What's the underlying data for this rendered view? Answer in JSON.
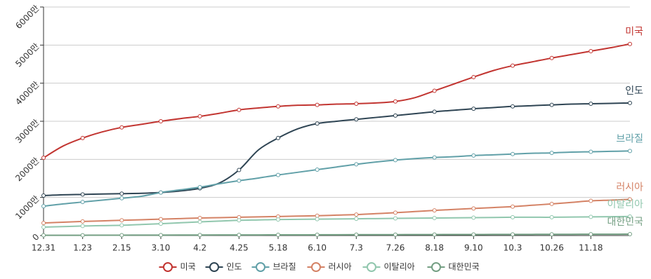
{
  "chart_data": {
    "type": "line",
    "categories": [
      "12.31",
      null,
      "1.23",
      null,
      "2.15",
      null,
      "3.10",
      null,
      "4.2",
      null,
      "4.25",
      null,
      "5.18",
      null,
      "6.10",
      null,
      "7.3",
      null,
      "7.26",
      null,
      "8.18",
      null,
      "9.10",
      null,
      "10.3",
      null,
      "10.26",
      null,
      "11.18",
      null,
      null
    ],
    "ylim": [
      0,
      6000
    ],
    "yticks": [
      0,
      {
        "value": 1000,
        "label": "1000만"
      },
      {
        "value": 2000,
        "label": "2000만"
      },
      {
        "value": 3000,
        "label": "3000만"
      },
      {
        "value": 4000,
        "label": "4000만"
      },
      {
        "value": 5000,
        "label": "5000만"
      },
      {
        "value": 6000,
        "label": "6000만"
      }
    ],
    "grid": true,
    "series": [
      {
        "name": "미국",
        "color": "#c23531",
        "values": [
          2040,
          2350,
          2560,
          2720,
          2840,
          2920,
          3000,
          3070,
          3130,
          3210,
          3300,
          3350,
          3390,
          3420,
          3430,
          3450,
          3460,
          3480,
          3520,
          3620,
          3800,
          3980,
          4160,
          4330,
          4460,
          4560,
          4660,
          4750,
          4840,
          4930,
          5030
        ]
      },
      {
        "name": "인도",
        "color": "#2f4554",
        "values": [
          1050,
          1070,
          1080,
          1090,
          1100,
          1110,
          1130,
          1170,
          1240,
          1380,
          1720,
          2250,
          2560,
          2800,
          2940,
          3000,
          3050,
          3100,
          3150,
          3200,
          3250,
          3290,
          3330,
          3360,
          3390,
          3410,
          3430,
          3450,
          3460,
          3470,
          3480
        ]
      },
      {
        "name": "브라질",
        "color": "#61a0a8",
        "values": [
          770,
          830,
          880,
          930,
          980,
          1030,
          1130,
          1200,
          1270,
          1360,
          1440,
          1510,
          1590,
          1660,
          1730,
          1800,
          1870,
          1930,
          1980,
          2020,
          2050,
          2070,
          2100,
          2120,
          2140,
          2160,
          2170,
          2190,
          2200,
          2210,
          2220
        ]
      },
      {
        "name": "러시아",
        "color": "#d48265",
        "values": [
          330,
          350,
          370,
          385,
          400,
          415,
          430,
          445,
          460,
          470,
          480,
          490,
          500,
          510,
          520,
          535,
          550,
          575,
          600,
          630,
          660,
          685,
          710,
          735,
          760,
          795,
          830,
          870,
          910,
          930,
          950
        ]
      },
      {
        "name": "이탈리아",
        "color": "#91c7ae",
        "values": [
          220,
          235,
          250,
          260,
          270,
          290,
          310,
          335,
          360,
          380,
          400,
          410,
          420,
          425,
          430,
          435,
          440,
          445,
          450,
          455,
          460,
          465,
          470,
          475,
          480,
          480,
          480,
          485,
          490,
          495,
          500
        ]
      },
      {
        "name": "대한민국",
        "color": "#749f83",
        "values": [
          6,
          7,
          8,
          9,
          10,
          11,
          12,
          13,
          14,
          15,
          16,
          17,
          18,
          19,
          20,
          21,
          22,
          23,
          24,
          25,
          26,
          27,
          28,
          29,
          30,
          31,
          32,
          33,
          34,
          35,
          36
        ]
      }
    ]
  }
}
